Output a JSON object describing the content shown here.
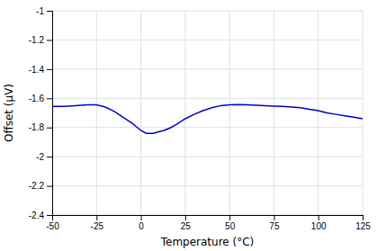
{
  "chart_data": {
    "type": "line",
    "xlabel": "Temperature (°C)",
    "ylabel": "Offset (μV)",
    "x": [
      -50,
      -43,
      -37,
      -30,
      -25,
      -20,
      -15,
      -10,
      -5,
      0,
      3,
      7,
      10,
      13,
      17,
      20,
      25,
      30,
      35,
      40,
      45,
      50,
      55,
      60,
      65,
      70,
      75,
      80,
      85,
      90,
      95,
      100,
      105,
      110,
      115,
      120,
      125
    ],
    "values": [
      -1.655,
      -1.655,
      -1.65,
      -1.645,
      -1.645,
      -1.66,
      -1.69,
      -1.73,
      -1.77,
      -1.82,
      -1.84,
      -1.84,
      -1.83,
      -1.82,
      -1.8,
      -1.78,
      -1.74,
      -1.71,
      -1.685,
      -1.665,
      -1.65,
      -1.645,
      -1.643,
      -1.645,
      -1.648,
      -1.65,
      -1.653,
      -1.655,
      -1.66,
      -1.665,
      -1.675,
      -1.685,
      -1.7,
      -1.71,
      -1.72,
      -1.73,
      -1.74
    ],
    "color": "#0000cc",
    "xlim": [
      -50,
      125
    ],
    "ylim": [
      -2.4,
      -1.0
    ],
    "xticks": [
      -50,
      -25,
      0,
      25,
      50,
      75,
      100,
      125
    ],
    "yticks": [
      -2.4,
      -2.2,
      -2,
      -1.8,
      -1.6,
      -1.4,
      -1.2,
      -1
    ],
    "grid": true
  }
}
